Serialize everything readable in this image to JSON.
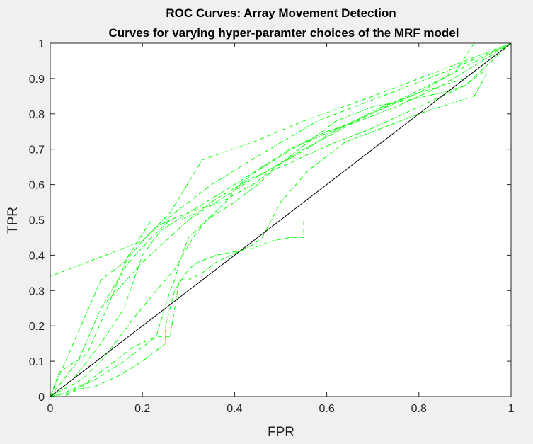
{
  "chart_data": {
    "type": "line",
    "title": "ROC Curves: Array Movement Detection",
    "subtitle": "Curves for varying hyper-paramter choices of the MRF model",
    "xlabel": "FPR",
    "ylabel": "TPR",
    "xlim": [
      0,
      1
    ],
    "ylim": [
      0,
      1
    ],
    "xticks": [
      "0",
      "0.2",
      "0.4",
      "0.6",
      "0.8",
      "1"
    ],
    "yticks": [
      "0",
      "0.1",
      "0.2",
      "0.3",
      "0.4",
      "0.5",
      "0.6",
      "0.7",
      "0.8",
      "0.9",
      "1"
    ],
    "grid": false,
    "legend": "none",
    "reference_line": {
      "x": [
        0,
        1
      ],
      "y": [
        0,
        1
      ],
      "color": "#000000",
      "style": "solid"
    },
    "series_color": "#00ff00",
    "series_style": "dash-dot",
    "series": [
      {
        "x": [
          0,
          0,
          0.2,
          0.26,
          0.33,
          0.44,
          0.55,
          0.7,
          1
        ],
        "y": [
          0,
          0.34,
          0.44,
          0.52,
          0.67,
          0.72,
          0.78,
          0.85,
          1
        ]
      },
      {
        "x": [
          0,
          0.02,
          0.08,
          0.12,
          0.17,
          0.22,
          0.25,
          0.35,
          0.45,
          0.58,
          0.72,
          0.86,
          1
        ],
        "y": [
          0,
          0.07,
          0.12,
          0.24,
          0.4,
          0.5,
          0.5,
          0.6,
          0.68,
          0.78,
          0.85,
          0.92,
          1
        ]
      },
      {
        "x": [
          0,
          0.05,
          0.11,
          0.16,
          0.2,
          0.24,
          0.3,
          0.4,
          0.52,
          0.66,
          0.8,
          0.88,
          0.92
        ],
        "y": [
          0,
          0.05,
          0.15,
          0.25,
          0.4,
          0.47,
          0.52,
          0.6,
          0.7,
          0.78,
          0.86,
          0.92,
          1
        ]
      },
      {
        "x": [
          0.11,
          0.2,
          0.3,
          0.42,
          0.55,
          0.68,
          0.82,
          1
        ],
        "y": [
          0.25,
          0.38,
          0.5,
          0.6,
          0.7,
          0.79,
          0.88,
          1
        ]
      },
      {
        "x": [
          0,
          0.07,
          0.11,
          0.14,
          0.18,
          0.23,
          0.27,
          0.31,
          0.34,
          0.38,
          0.41,
          0.43,
          0.45,
          0.5,
          0.55,
          0.6,
          0.67,
          0.75,
          0.85,
          1
        ],
        "y": [
          0,
          0.05,
          0.1,
          0.15,
          0.22,
          0.3,
          0.36,
          0.45,
          0.5,
          0.55,
          0.6,
          0.62,
          0.64,
          0.68,
          0.72,
          0.75,
          0.78,
          0.82,
          0.88,
          1
        ]
      },
      {
        "x": [
          0,
          0.06,
          0.11,
          0.17,
          0.22,
          0.26,
          0.3,
          0.37,
          0.44,
          0.48,
          0.52,
          0.55,
          0.62,
          0.7,
          0.8,
          0.9,
          1
        ],
        "y": [
          0,
          0.1,
          0.25,
          0.38,
          0.45,
          0.5,
          0.52,
          0.55,
          0.6,
          0.64,
          0.66,
          0.68,
          0.72,
          0.76,
          0.82,
          0.88,
          1
        ]
      },
      {
        "x": [
          0,
          0.03,
          0.08,
          0.14,
          0.18,
          0.23,
          0.26,
          0.28,
          0.3,
          0.33,
          0.36,
          0.44,
          0.46,
          0.5,
          0.56,
          0.64,
          0.72,
          0.8,
          0.87,
          0.92,
          0.95
        ],
        "y": [
          0,
          0.01,
          0.04,
          0.1,
          0.14,
          0.17,
          0.17,
          0.33,
          0.33,
          0.35,
          0.38,
          0.43,
          0.45,
          0.55,
          0.64,
          0.72,
          0.76,
          0.8,
          0.83,
          0.85,
          0.92
        ]
      },
      {
        "x": [
          0,
          0.11,
          0.16,
          0.2,
          0.23,
          0.26,
          0.28,
          0.32,
          0.36,
          0.44,
          0.46,
          0.5,
          0.53,
          0.58,
          0.6,
          0.66,
          0.72,
          0.8,
          0.9,
          1
        ],
        "y": [
          0,
          0.33,
          0.38,
          0.44,
          0.48,
          0.5,
          0.5,
          0.52,
          0.56,
          0.62,
          0.63,
          0.66,
          0.68,
          0.72,
          0.74,
          0.78,
          0.82,
          0.86,
          0.9,
          1
        ]
      },
      {
        "x": [
          0.22,
          0.26,
          0.31,
          0.4,
          0.5,
          0.6,
          0.7,
          0.85,
          1
        ],
        "y": [
          0.5,
          0.5,
          0.5,
          0.5,
          0.5,
          0.5,
          0.5,
          0.5,
          0.5
        ]
      },
      {
        "x": [
          0,
          0.03,
          0.06,
          0.1,
          0.15,
          0.2,
          0.25,
          0.25,
          0.27,
          0.3,
          0.32,
          0.36,
          0.4,
          0.44,
          0.48,
          0.52,
          0.55,
          0.55
        ],
        "y": [
          0,
          0.0,
          0.02,
          0.03,
          0.06,
          0.1,
          0.15,
          0.2,
          0.3,
          0.36,
          0.38,
          0.4,
          0.41,
          0.42,
          0.44,
          0.45,
          0.45,
          0.5
        ]
      },
      {
        "x": [
          0,
          0.04,
          0.1,
          0.16,
          0.23,
          0.26,
          0.27,
          0.28,
          0.3,
          0.34,
          0.4,
          0.45,
          0.5,
          0.56,
          0.62,
          0.7,
          0.78,
          0.85,
          0.9,
          0.94
        ],
        "y": [
          0,
          0.01,
          0.05,
          0.1,
          0.17,
          0.3,
          0.33,
          0.38,
          0.45,
          0.5,
          0.55,
          0.6,
          0.66,
          0.72,
          0.78,
          0.82,
          0.84,
          0.86,
          0.88,
          0.92
        ]
      }
    ]
  }
}
